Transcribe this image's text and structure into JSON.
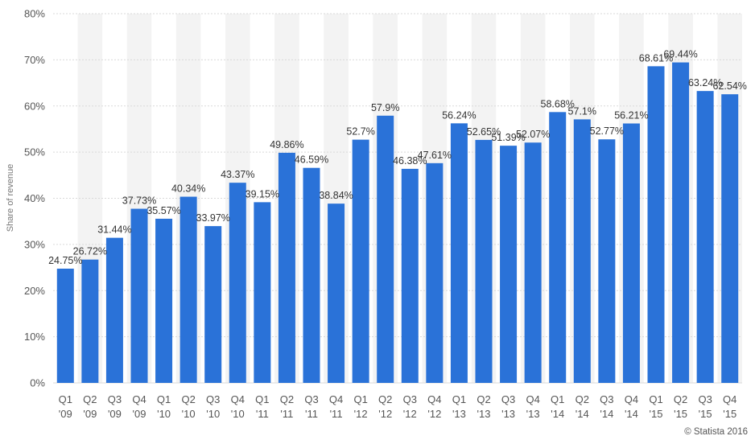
{
  "chart_data": {
    "type": "bar",
    "categories": [
      [
        "Q1",
        "'09"
      ],
      [
        "Q2",
        "'09"
      ],
      [
        "Q3",
        "'09"
      ],
      [
        "Q4",
        "'09"
      ],
      [
        "Q1",
        "'10"
      ],
      [
        "Q2",
        "'10"
      ],
      [
        "Q3",
        "'10"
      ],
      [
        "Q4",
        "'10"
      ],
      [
        "Q1",
        "'11"
      ],
      [
        "Q2",
        "'11"
      ],
      [
        "Q3",
        "'11"
      ],
      [
        "Q4",
        "'11"
      ],
      [
        "Q1",
        "'12"
      ],
      [
        "Q2",
        "'12"
      ],
      [
        "Q3",
        "'12"
      ],
      [
        "Q4",
        "'12"
      ],
      [
        "Q1",
        "'13"
      ],
      [
        "Q2",
        "'13"
      ],
      [
        "Q3",
        "'13"
      ],
      [
        "Q4",
        "'13"
      ],
      [
        "Q1",
        "'14"
      ],
      [
        "Q2",
        "'14"
      ],
      [
        "Q3",
        "'14"
      ],
      [
        "Q4",
        "'14"
      ],
      [
        "Q1",
        "'15"
      ],
      [
        "Q2",
        "'15"
      ],
      [
        "Q3",
        "'15"
      ],
      [
        "Q4",
        "'15"
      ]
    ],
    "values": [
      24.75,
      26.72,
      31.44,
      37.73,
      35.57,
      40.34,
      33.97,
      43.37,
      39.15,
      49.86,
      46.59,
      38.84,
      52.7,
      57.9,
      46.38,
      47.61,
      56.24,
      52.65,
      51.39,
      52.07,
      58.68,
      57.1,
      52.77,
      56.21,
      68.61,
      69.44,
      63.24,
      62.54
    ],
    "value_labels": [
      "24.75%",
      "26.72%",
      "31.44%",
      "37.73%",
      "35.57%",
      "40.34%",
      "33.97%",
      "43.37%",
      "39.15%",
      "49.86%",
      "46.59%",
      "38.84%",
      "52.7%",
      "57.9%",
      "46.38%",
      "47.61%",
      "56.24%",
      "52.65%",
      "51.39%",
      "52.07%",
      "58.68%",
      "57.1%",
      "52.77%",
      "56.21%",
      "68.61%",
      "69.44%",
      "63.24%",
      "62.54%"
    ],
    "title": "",
    "xlabel": "",
    "ylabel": "Share of revenue",
    "ylim": [
      0,
      80
    ],
    "yticks": [
      0,
      10,
      20,
      30,
      40,
      50,
      60,
      70,
      80
    ],
    "ytick_labels": [
      "0%",
      "10%",
      "20%",
      "30%",
      "40%",
      "50%",
      "60%",
      "70%",
      "80%"
    ],
    "grid": true,
    "legend": "none",
    "colors": {
      "bar": "#2a72d8",
      "band": "#f3f3f3",
      "gridline": "#d9d9d9"
    },
    "credit": "© Statista 2016"
  }
}
